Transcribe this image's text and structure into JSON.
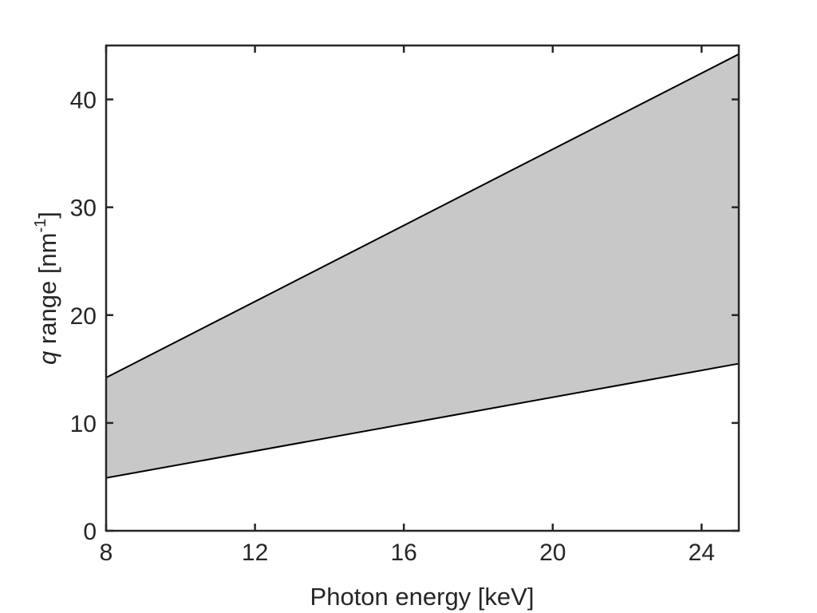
{
  "chart_data": {
    "type": "area",
    "title": "",
    "xlabel": "Photon energy [keV]",
    "ylabel": {
      "var": "q",
      "text": " range [nm",
      "sup": "-1",
      "close": "]"
    },
    "xlim": [
      8,
      25
    ],
    "ylim": [
      0,
      45
    ],
    "xticks": [
      8,
      12,
      16,
      20,
      24
    ],
    "yticks": [
      0,
      10,
      20,
      30,
      40
    ],
    "grid": false,
    "legend": "none",
    "band": {
      "x": [
        8,
        25
      ],
      "upper": [
        14.2,
        44.2
      ],
      "lower": [
        4.9,
        15.5
      ]
    },
    "colors": {
      "fill": "#c8c8c8",
      "line": "#000000",
      "axis": "#262626"
    }
  }
}
